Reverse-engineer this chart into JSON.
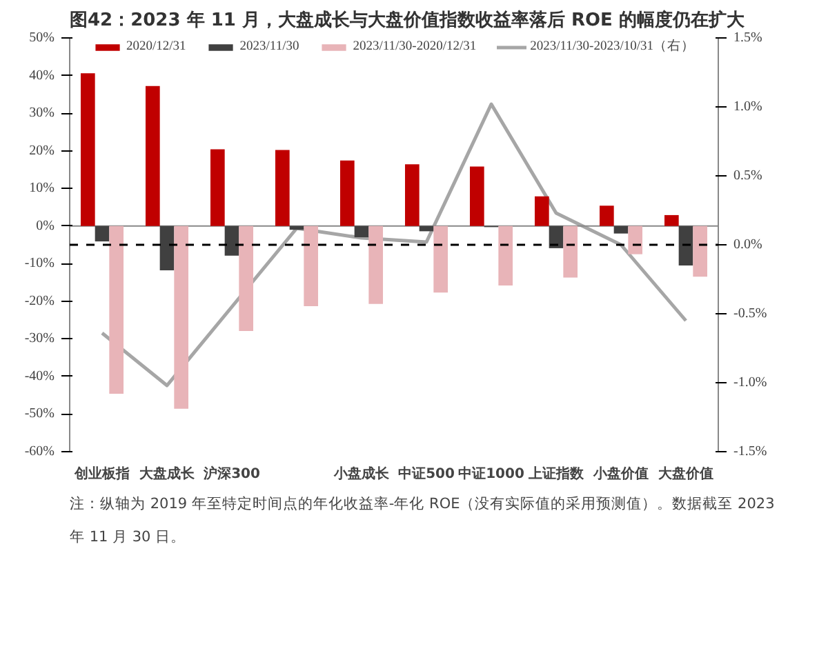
{
  "chart_data": {
    "type": "bar",
    "title": "图42：2023 年 11 月，大盘成长与大盘价值指数收益率落后 ROE 的幅度仍在扩大",
    "categories": [
      "创业板指",
      "大盘成长",
      "沪深300",
      null,
      "小盘成长",
      "中证500",
      "中证1000",
      "上证指数",
      "小盘价值",
      "大盘价值"
    ],
    "series": [
      {
        "name": "2020/12/31",
        "color": "#c00000",
        "values": [
          40.6,
          37.2,
          20.4,
          20.2,
          17.4,
          16.4,
          15.8,
          7.9,
          5.4,
          2.9
        ]
      },
      {
        "name": "2023/11/30",
        "color": "#404040",
        "values": [
          -4.1,
          -11.8,
          -7.9,
          -1.0,
          -3.0,
          -1.4,
          -0.3,
          -5.9,
          -2.0,
          -10.5
        ]
      },
      {
        "name": "2023/11/30-2020/12/31",
        "color": "#e8b4b8",
        "values": [
          -44.6,
          -48.6,
          -27.9,
          -21.3,
          -20.7,
          -17.7,
          -15.8,
          -13.7,
          -7.5,
          -13.5
        ]
      },
      {
        "name": "2023/11/30-2023/10/31（右）",
        "color": "#a6a6a6",
        "type": "line",
        "axis": "y2",
        "values": [
          -0.64,
          -1.02,
          -0.45,
          0.12,
          0.05,
          0.02,
          1.02,
          0.23,
          0.0,
          -0.55
        ]
      }
    ],
    "ylim": [
      -60,
      50
    ],
    "yticks": [
      {
        "value": -60,
        "label": "-60%"
      },
      {
        "value": -50,
        "label": "-50%"
      },
      {
        "value": -40,
        "label": "-40%"
      },
      {
        "value": -30,
        "label": "-30%"
      },
      {
        "value": -20,
        "label": "-20%"
      },
      {
        "value": -10,
        "label": "-10%"
      },
      {
        "value": 0,
        "label": "0%"
      },
      {
        "value": 10,
        "label": "10%"
      },
      {
        "value": 20,
        "label": "20%"
      },
      {
        "value": 30,
        "label": "30%"
      },
      {
        "value": 40,
        "label": "40%"
      },
      {
        "value": 50,
        "label": "50%"
      }
    ],
    "y2lim": [
      -1.5,
      1.5
    ],
    "y2ticks": [
      {
        "value": -1.5,
        "label": "-1.5%"
      },
      {
        "value": -1.0,
        "label": "-1.0%"
      },
      {
        "value": -0.5,
        "label": "-0.5%"
      },
      {
        "value": 0.0,
        "label": "0.0%"
      },
      {
        "value": 0.5,
        "label": "0.5%"
      },
      {
        "value": 1.0,
        "label": "1.0%"
      },
      {
        "value": 1.5,
        "label": "1.5%"
      }
    ],
    "ref_lines": [
      {
        "axis": "y2",
        "value": 0,
        "color": "#000000",
        "line_style": "dashed"
      }
    ],
    "annotations": [
      "注：纵轴为 2019 年至特定时间点的年化收益率-年化 ROE（没有实际值的采用预测值）。数据截至 2023 年 11 月 30 日。"
    ],
    "grid": false,
    "legend": "top",
    "line_style": "solid",
    "marker": "none"
  }
}
